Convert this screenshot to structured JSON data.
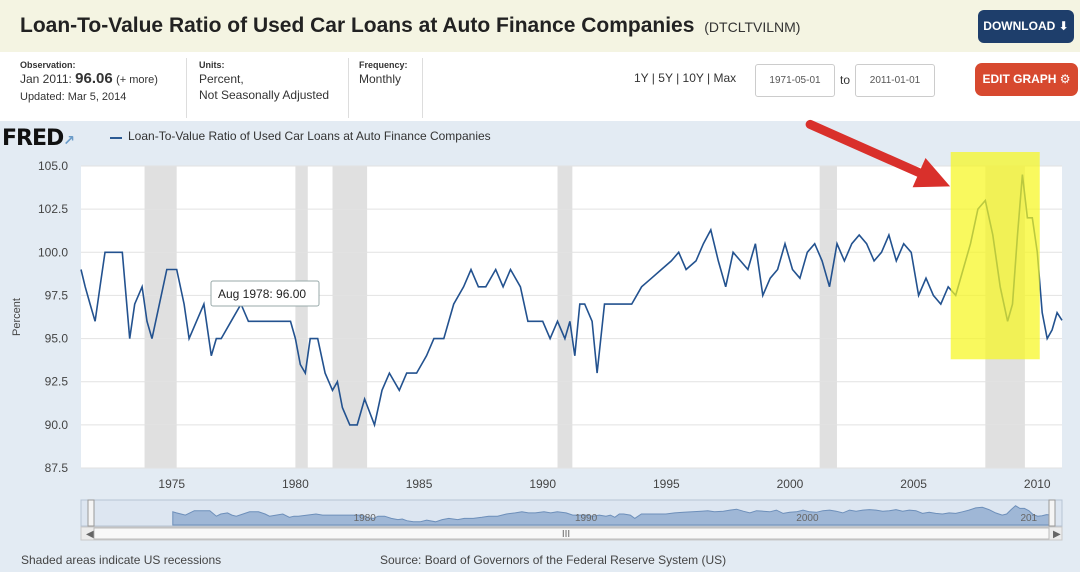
{
  "header": {
    "title": "Loan-To-Value Ratio of Used Car Loans at Auto Finance Companies",
    "series_id": "(DTCLTVILNM)",
    "download_label": "DOWNLOAD",
    "download_icon": "download-icon"
  },
  "meta": {
    "observation_label": "Observation:",
    "observation_date": "Jan 2011:",
    "observation_value": "96.06",
    "observation_more": "(+ more)",
    "updated": "Updated: Mar 5, 2014",
    "units_label": "Units:",
    "units_line1": "Percent,",
    "units_line2": "Not Seasonally Adjusted",
    "frequency_label": "Frequency:",
    "frequency_value": "Monthly"
  },
  "controls": {
    "range_1y": "1Y",
    "range_5y": "5Y",
    "range_10y": "10Y",
    "range_max": "Max",
    "start_date": "1971-05-01",
    "to_label": "to",
    "end_date": "2011-01-01",
    "edit_label": "EDIT GRAPH",
    "edit_icon": "gear-icon"
  },
  "chart": {
    "logo": "FRED",
    "legend": "Loan-To-Value Ratio of Used Car Loans at Auto Finance Companies",
    "tooltip": "Aug 1978: 96.00",
    "navigator_labels": [
      "1980",
      "1990",
      "2000",
      "201"
    ],
    "navigator_handle": "III"
  },
  "footer": {
    "recession_note": "Shaded areas indicate US recessions",
    "source": "Source: Board of Governors of the Federal Reserve System (US)"
  },
  "colors": {
    "series": "#23528f",
    "download_button": "#1e3e6b",
    "edit_button": "#d7492f",
    "highlight": "#f6f620",
    "arrow": "#d9302b"
  },
  "chart_data": {
    "type": "line",
    "title": "Loan-To-Value Ratio of Used Car Loans at Auto Finance Companies",
    "ylabel": "Percent",
    "xlabel": "",
    "ylim": [
      87.5,
      105
    ],
    "xlim": [
      1971.33,
      2011.0
    ],
    "yticks": [
      87.5,
      90.0,
      92.5,
      95.0,
      97.5,
      100.0,
      102.5,
      105.0
    ],
    "xticks": [
      1975,
      1980,
      1985,
      1990,
      1995,
      2000,
      2005,
      2010
    ],
    "grid": true,
    "recessions": [
      [
        1973.9,
        1975.2
      ],
      [
        1980.0,
        1980.5
      ],
      [
        1981.5,
        1982.9
      ],
      [
        1990.6,
        1991.2
      ],
      [
        2001.2,
        2001.9
      ],
      [
        2007.9,
        2009.5
      ]
    ],
    "series": [
      {
        "name": "Loan-To-Value Ratio of Used Car Loans at Auto Finance Companies",
        "x": [
          1971.33,
          1971.5,
          1971.7,
          1971.9,
          1972.1,
          1972.3,
          1972.5,
          1972.7,
          1973.0,
          1973.3,
          1973.5,
          1973.8,
          1974.0,
          1974.2,
          1974.5,
          1974.8,
          1975.2,
          1975.5,
          1975.7,
          1976.0,
          1976.3,
          1976.6,
          1976.8,
          1977.0,
          1977.4,
          1977.8,
          1978.1,
          1978.4,
          1978.6,
          1978.9,
          1979.2,
          1979.5,
          1979.8,
          1980.0,
          1980.2,
          1980.4,
          1980.6,
          1980.9,
          1981.2,
          1981.5,
          1981.7,
          1981.9,
          1982.2,
          1982.5,
          1982.8,
          1983.2,
          1983.5,
          1983.8,
          1984.2,
          1984.5,
          1984.9,
          1985.3,
          1985.6,
          1986.0,
          1986.4,
          1986.8,
          1987.1,
          1987.4,
          1987.7,
          1988.1,
          1988.4,
          1988.7,
          1989.1,
          1989.4,
          1989.7,
          1990.0,
          1990.3,
          1990.6,
          1990.9,
          1991.1,
          1991.3,
          1991.5,
          1991.7,
          1992.0,
          1992.2,
          1992.5,
          1992.8,
          1993.2,
          1993.6,
          1994.0,
          1994.4,
          1994.8,
          1995.2,
          1995.5,
          1995.8,
          1996.2,
          1996.5,
          1996.8,
          1997.1,
          1997.4,
          1997.7,
          1998.0,
          1998.3,
          1998.6,
          1998.9,
          1999.2,
          1999.5,
          1999.8,
          2000.1,
          2000.4,
          2000.7,
          2001.0,
          2001.3,
          2001.6,
          2001.9,
          2002.2,
          2002.5,
          2002.8,
          2003.1,
          2003.4,
          2003.7,
          2004.0,
          2004.3,
          2004.6,
          2004.9,
          2005.2,
          2005.5,
          2005.8,
          2006.1,
          2006.4,
          2006.7,
          2007.0,
          2007.3,
          2007.6,
          2007.9,
          2008.2,
          2008.5,
          2008.8,
          2009.0,
          2009.2,
          2009.4,
          2009.6,
          2009.8,
          2010.0,
          2010.2,
          2010.4,
          2010.6,
          2010.8,
          2011.0
        ],
        "values": [
          99.0,
          98.0,
          97.0,
          96.0,
          98.0,
          100.0,
          100.0,
          100.0,
          100.0,
          95.0,
          97.0,
          98.0,
          96.0,
          95.0,
          97.0,
          99.0,
          99.0,
          97.0,
          95.0,
          96.0,
          97.0,
          94.0,
          95.0,
          95.0,
          96.0,
          97.0,
          96.0,
          96.0,
          96.0,
          96.0,
          96.0,
          96.0,
          96.0,
          95.0,
          93.5,
          93.0,
          95.0,
          95.0,
          93.0,
          92.0,
          92.5,
          91.0,
          90.0,
          90.0,
          91.5,
          90.0,
          92.0,
          93.0,
          92.0,
          93.0,
          93.0,
          94.0,
          95.0,
          95.0,
          97.0,
          98.0,
          99.0,
          98.0,
          98.0,
          99.0,
          98.0,
          99.0,
          98.0,
          96.0,
          96.0,
          96.0,
          95.0,
          96.0,
          95.0,
          96.0,
          94.0,
          97.0,
          97.0,
          96.0,
          93.0,
          97.0,
          97.0,
          97.0,
          97.0,
          98.0,
          98.5,
          99.0,
          99.5,
          100.0,
          99.0,
          99.5,
          100.5,
          101.3,
          99.5,
          98.0,
          100.0,
          99.5,
          99.0,
          100.5,
          97.5,
          98.5,
          99.0,
          100.5,
          99.0,
          98.5,
          100.0,
          100.5,
          99.5,
          98.0,
          100.5,
          99.5,
          100.5,
          101.0,
          100.5,
          99.5,
          100.0,
          101.0,
          99.5,
          100.5,
          100.0,
          97.5,
          98.5,
          97.5,
          97.0,
          98.0,
          97.5,
          99.0,
          100.5,
          102.5,
          103.0,
          101.0,
          98.0,
          96.0,
          97.0,
          101.0,
          104.5,
          102.0,
          102.0,
          100.0,
          96.5,
          95.0,
          95.5,
          96.5,
          96.06
        ]
      }
    ],
    "annotations": [
      {
        "type": "tooltip",
        "text": "Aug 1978: 96.00",
        "x": 1978.6,
        "y": 96.0
      },
      {
        "type": "highlight",
        "x_range": [
          2006.5,
          2010.1
        ],
        "y_range": [
          93.8,
          105.0
        ]
      },
      {
        "type": "arrow",
        "points_to_x": 2006.8,
        "points_to_y": 101.5
      }
    ]
  }
}
